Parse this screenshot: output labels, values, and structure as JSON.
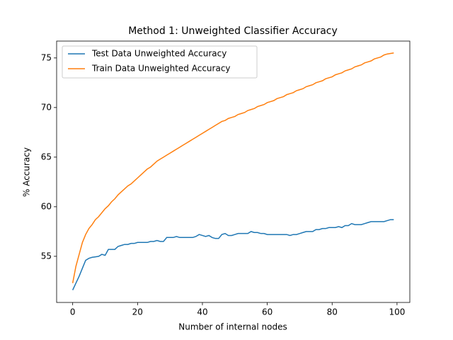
{
  "chart_data": {
    "type": "line",
    "title": "Method 1: Unweighted Classifier Accuracy",
    "xlabel": "Number of internal nodes",
    "ylabel": "% Accuracy",
    "x": [
      0,
      1,
      2,
      3,
      4,
      5,
      6,
      7,
      8,
      9,
      10,
      11,
      12,
      13,
      14,
      15,
      16,
      17,
      18,
      19,
      20,
      21,
      22,
      23,
      24,
      25,
      26,
      27,
      28,
      29,
      30,
      31,
      32,
      33,
      34,
      35,
      36,
      37,
      38,
      39,
      40,
      41,
      42,
      43,
      44,
      45,
      46,
      47,
      48,
      49,
      50,
      51,
      52,
      53,
      54,
      55,
      56,
      57,
      58,
      59,
      60,
      61,
      62,
      63,
      64,
      65,
      66,
      67,
      68,
      69,
      70,
      71,
      72,
      73,
      74,
      75,
      76,
      77,
      78,
      79,
      80,
      81,
      82,
      83,
      84,
      85,
      86,
      87,
      88,
      89,
      90,
      91,
      92,
      93,
      94,
      95,
      96,
      97,
      98,
      99
    ],
    "series": [
      {
        "name": "Test Data Unweighted Accuracy",
        "color": "#1f77b4",
        "values": [
          51.6,
          52.3,
          53.0,
          53.8,
          54.6,
          54.8,
          54.9,
          54.95,
          55.0,
          55.2,
          55.1,
          55.7,
          55.7,
          55.7,
          56.0,
          56.1,
          56.2,
          56.2,
          56.3,
          56.3,
          56.4,
          56.4,
          56.4,
          56.4,
          56.5,
          56.5,
          56.6,
          56.5,
          56.5,
          56.9,
          56.9,
          56.9,
          57.0,
          56.9,
          56.9,
          56.9,
          56.9,
          56.9,
          57.0,
          57.2,
          57.1,
          57.0,
          57.1,
          56.9,
          56.8,
          56.8,
          57.2,
          57.3,
          57.1,
          57.1,
          57.2,
          57.3,
          57.3,
          57.3,
          57.3,
          57.5,
          57.4,
          57.4,
          57.3,
          57.3,
          57.2,
          57.2,
          57.2,
          57.2,
          57.2,
          57.2,
          57.2,
          57.1,
          57.2,
          57.2,
          57.3,
          57.4,
          57.5,
          57.5,
          57.5,
          57.7,
          57.7,
          57.8,
          57.8,
          57.9,
          57.9,
          57.9,
          58.0,
          57.9,
          58.1,
          58.1,
          58.3,
          58.2,
          58.2,
          58.2,
          58.3,
          58.4,
          58.5,
          58.5,
          58.5,
          58.5,
          58.5,
          58.6,
          58.7,
          58.7
        ]
      },
      {
        "name": "Train Data Unweighted Accuracy",
        "color": "#ff7f0e",
        "values": [
          52.3,
          54.0,
          55.2,
          56.4,
          57.2,
          57.8,
          58.2,
          58.7,
          59.0,
          59.4,
          59.8,
          60.1,
          60.5,
          60.8,
          61.2,
          61.5,
          61.8,
          62.1,
          62.3,
          62.6,
          62.9,
          63.2,
          63.5,
          63.8,
          64.0,
          64.3,
          64.6,
          64.8,
          65.0,
          65.2,
          65.4,
          65.6,
          65.8,
          66.0,
          66.2,
          66.4,
          66.6,
          66.8,
          67.0,
          67.2,
          67.4,
          67.6,
          67.8,
          68.0,
          68.2,
          68.4,
          68.6,
          68.7,
          68.9,
          69.0,
          69.1,
          69.3,
          69.4,
          69.5,
          69.7,
          69.8,
          69.9,
          70.1,
          70.2,
          70.3,
          70.5,
          70.6,
          70.7,
          70.9,
          71.0,
          71.1,
          71.3,
          71.4,
          71.5,
          71.7,
          71.8,
          71.9,
          72.1,
          72.2,
          72.3,
          72.5,
          72.6,
          72.7,
          72.9,
          73.0,
          73.1,
          73.3,
          73.4,
          73.5,
          73.7,
          73.8,
          73.9,
          74.1,
          74.2,
          74.3,
          74.5,
          74.6,
          74.7,
          74.9,
          75.0,
          75.1,
          75.3,
          75.4,
          75.45,
          75.5
        ]
      }
    ],
    "xlim": [
      -4.95,
      103.95
    ],
    "ylim": [
      50.35,
      76.7
    ],
    "xticks": [
      0,
      20,
      40,
      60,
      80,
      100
    ],
    "yticks": [
      55,
      60,
      65,
      70,
      75
    ],
    "legend": "upper left"
  }
}
